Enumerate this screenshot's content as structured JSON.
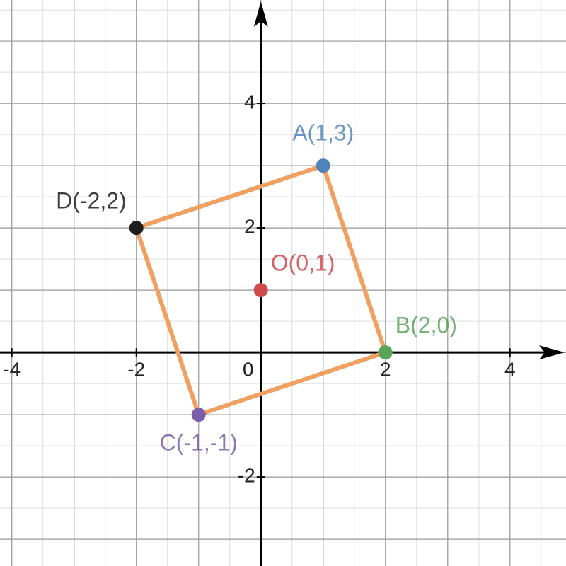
{
  "chart_data": {
    "type": "scatter",
    "xlim": [
      -4.19,
      4.9
    ],
    "ylim": [
      -3.43,
      5.66
    ],
    "xticks": [
      -4,
      -2,
      0,
      2,
      4
    ],
    "yticks": [
      -2,
      2,
      4
    ],
    "grid": true,
    "grid_step": 1,
    "minor_grid_step": 0.5,
    "polygon_color": "#f0a060",
    "series": [
      {
        "name": "A(1,3)",
        "color": "#4f84bb",
        "x": [
          1
        ],
        "values": [
          3
        ]
      },
      {
        "name": "B(2,0)",
        "color": "#5aa45a",
        "x": [
          2
        ],
        "values": [
          0
        ]
      },
      {
        "name": "C(-1,-1)",
        "color": "#7b5ea9",
        "x": [
          -1
        ],
        "values": [
          -1
        ]
      },
      {
        "name": "D(-2,2)",
        "color": "#1e1e1e",
        "x": [
          -2
        ],
        "values": [
          2
        ]
      }
    ],
    "center": {
      "name": "O(0,1)",
      "color": "#cf4a4a",
      "x": [
        0
      ],
      "values": [
        1
      ]
    }
  }
}
